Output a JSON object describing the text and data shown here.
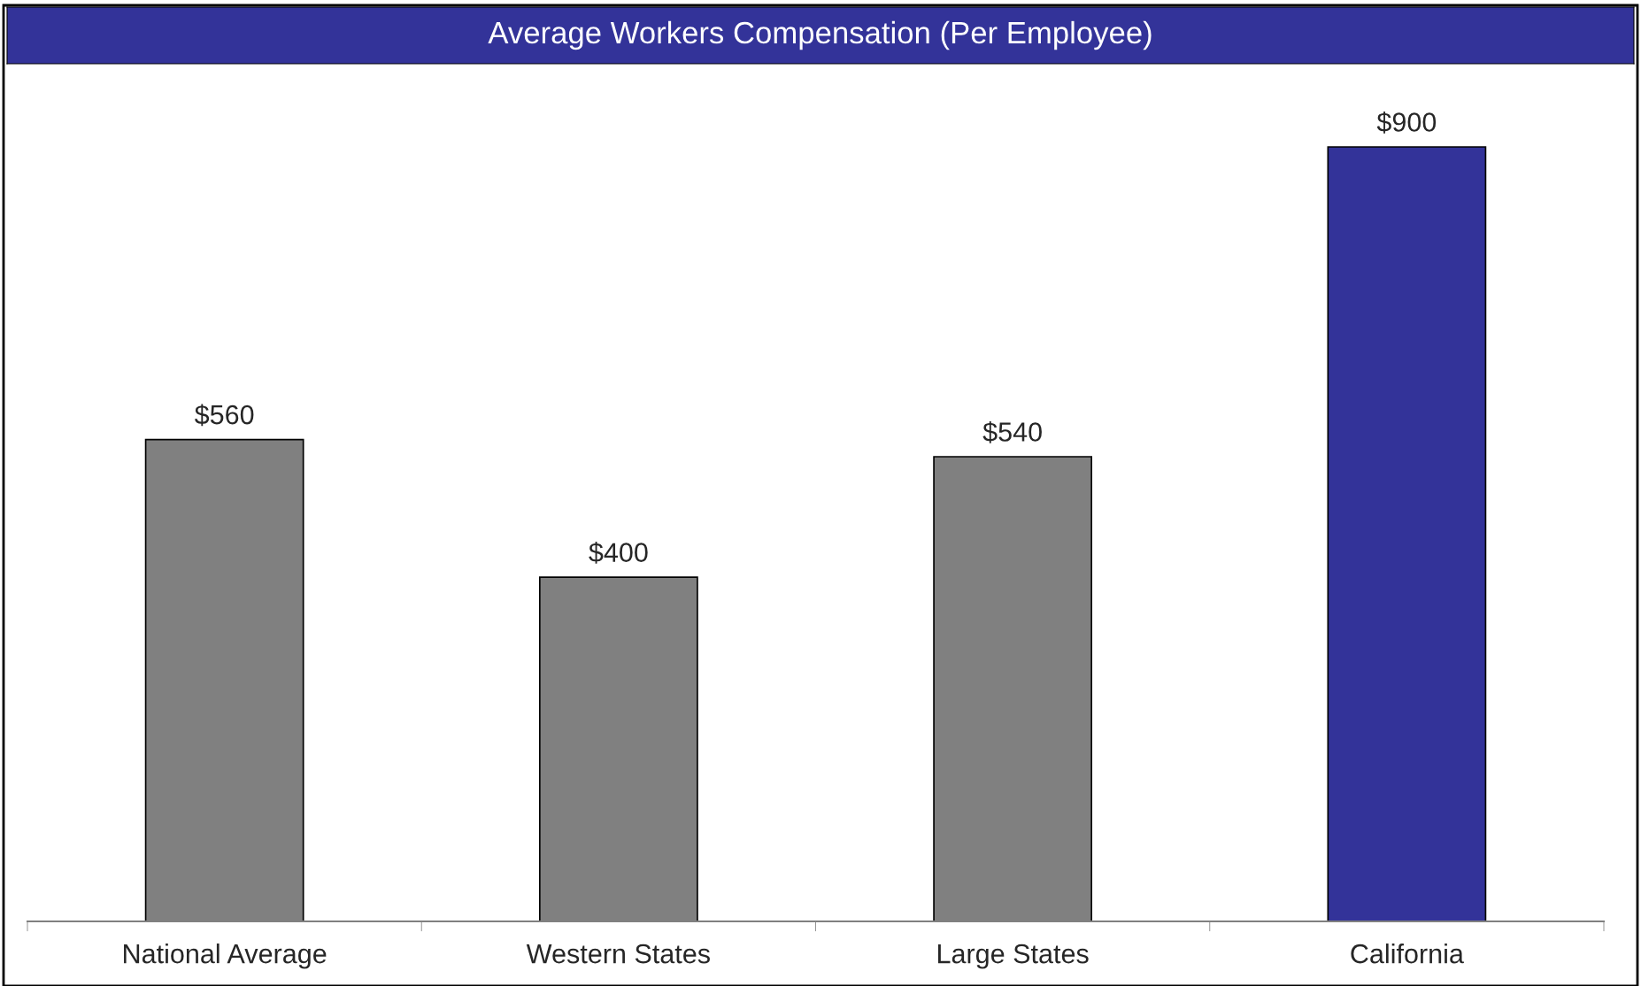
{
  "chart_data": {
    "type": "bar",
    "title": "Average Workers Compensation (Per Employee)",
    "categories": [
      "National Average",
      "Western States",
      "Large States",
      "California"
    ],
    "values": [
      560,
      400,
      540,
      900
    ],
    "colors": [
      "#808080",
      "#808080",
      "#808080",
      "#333399"
    ],
    "value_labels": [
      "$560",
      "$400",
      "$540",
      "$900"
    ],
    "grid": false,
    "legend": false
  }
}
